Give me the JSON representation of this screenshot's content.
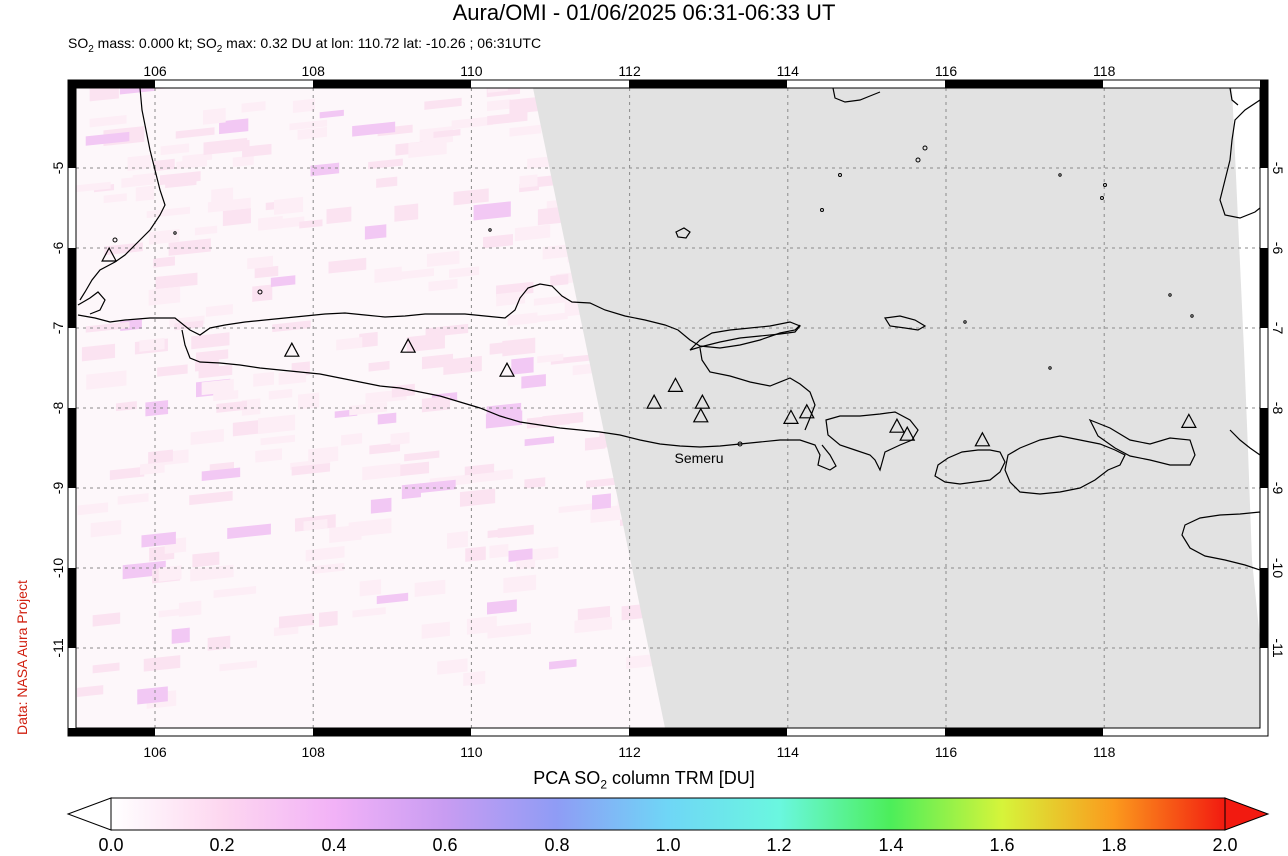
{
  "header": {
    "title": "Aura/OMI - 01/06/2025 06:31-06:33 UT",
    "subtitle_prefix": "SO",
    "subtitle_sub": "2",
    "subtitle_mid": " mass: 0.000 kt; SO",
    "subtitle_sub2": "2",
    "subtitle_rest": " max: 0.32 DU at lon: 110.72 lat: -10.26 ; 06:31UTC"
  },
  "credit": "Data: NASA Aura Project",
  "map": {
    "lon_range": [
      104.9,
      120.0
    ],
    "lat_range": [
      -12.0,
      -3.95
    ],
    "lon_ticks": [
      "106",
      "108",
      "110",
      "112",
      "114",
      "116",
      "118"
    ],
    "lat_ticks": [
      "-5",
      "-6",
      "-7",
      "-8",
      "-9",
      "-10",
      "-11"
    ],
    "volcano_label": "Semeru",
    "no_data_color": "#e2e2e2",
    "grid": "dashed"
  },
  "colorbar": {
    "title_prefix": "PCA SO",
    "title_sub": "2",
    "title_rest": " column TRM [DU]",
    "ticks": [
      "0.0",
      "0.2",
      "0.4",
      "0.6",
      "0.8",
      "1.0",
      "1.2",
      "1.4",
      "1.6",
      "1.8",
      "2.0"
    ],
    "range": [
      0.0,
      2.0
    ],
    "colors": [
      "#ffffff",
      "#fdd7f0",
      "#f2b2f7",
      "#c89cf2",
      "#8f9cf5",
      "#6fd6f6",
      "#6af7df",
      "#4cee5a",
      "#d6f43a",
      "#fb9a1d",
      "#f21a10"
    ]
  }
}
